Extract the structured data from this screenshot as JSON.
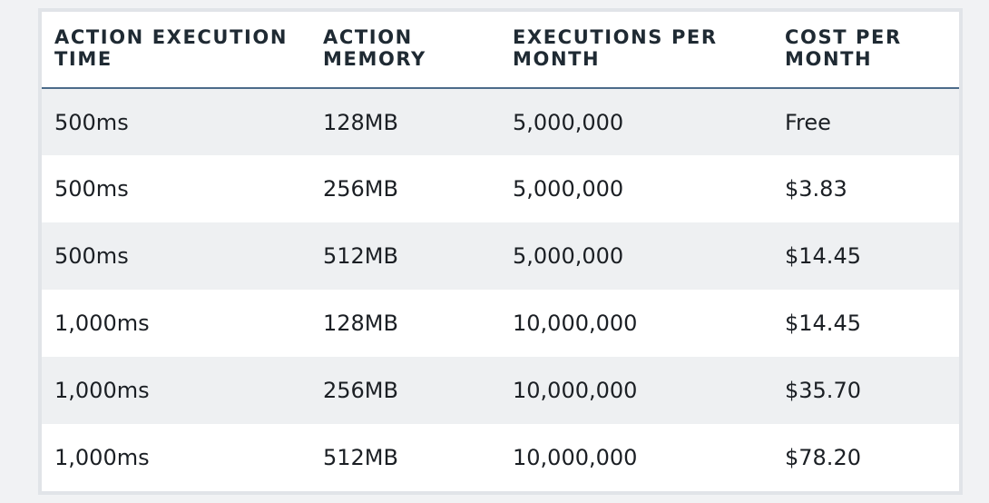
{
  "table": {
    "headers": [
      {
        "line1": "ACTION EXECUTION",
        "line2": "TIME"
      },
      {
        "line1": "ACTION",
        "line2": "MEMORY"
      },
      {
        "line1": "EXECUTIONS PER",
        "line2": "MONTH"
      },
      {
        "line1": "COST PER",
        "line2": "MONTH"
      }
    ],
    "rows": [
      [
        "500ms",
        "128MB",
        "5,000,000",
        "Free"
      ],
      [
        "500ms",
        "256MB",
        "5,000,000",
        "$3.83"
      ],
      [
        "500ms",
        "512MB",
        "5,000,000",
        "$14.45"
      ],
      [
        "1,000ms",
        "128MB",
        "10,000,000",
        "$14.45"
      ],
      [
        "1,000ms",
        "256MB",
        "10,000,000",
        "$35.70"
      ],
      [
        "1,000ms",
        "512MB",
        "10,000,000",
        "$78.20"
      ]
    ]
  }
}
